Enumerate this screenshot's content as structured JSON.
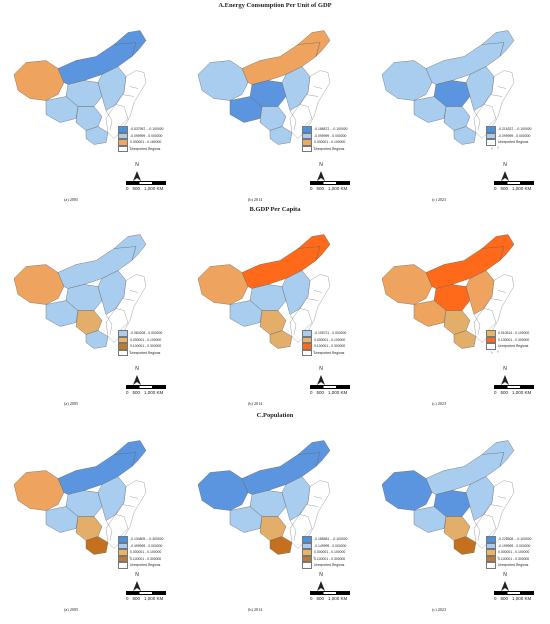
{
  "sections": [
    {
      "title": "A.Energy Consumption Per Unit of GDP",
      "panels": [
        {
          "caption": "(a) 2005",
          "legend": [
            {
              "label": "-0.537957 - -0.100000",
              "color": "#4d8fe0"
            },
            {
              "label": "-0.099999 - 0.000000",
              "color": "#a8cdee"
            },
            {
              "label": "0.000001 - 0.160000",
              "color": "#f0a860"
            },
            {
              "label": "Unreported Regions",
              "color": "#ffffff"
            }
          ],
          "fills": [
            "orange",
            "blue",
            "blue",
            "light",
            "light",
            "light",
            "light",
            "light"
          ]
        },
        {
          "caption": "(b) 2014",
          "legend": [
            {
              "label": "-0.186872 - -0.100000",
              "color": "#4d8fe0"
            },
            {
              "label": "-0.099999 - 0.000000",
              "color": "#a8cdee"
            },
            {
              "label": "0.000001 - 0.100000",
              "color": "#f0a860"
            },
            {
              "label": "Unreported Regions",
              "color": "#ffffff"
            }
          ],
          "fills": [
            "light",
            "orange",
            "orange",
            "blue",
            "blue",
            "light",
            "light",
            "light"
          ]
        },
        {
          "caption": "(c) 2023",
          "legend": [
            {
              "label": "-0.216337 - -0.100000",
              "color": "#4d8fe0"
            },
            {
              "label": "-0.099999 - 0.000000",
              "color": "#a8cdee"
            },
            {
              "label": "Unreported Regions",
              "color": "#ffffff"
            }
          ],
          "fills": [
            "light",
            "light",
            "light",
            "blue",
            "light",
            "light",
            "light",
            "light"
          ]
        }
      ]
    },
    {
      "title": "B.GDP Per Capita",
      "panels": [
        {
          "caption": "(a) 2005",
          "legend": [
            {
              "label": "-0.084208 - 0.000000",
              "color": "#a8cdee"
            },
            {
              "label": "0.000001 - 0.100000",
              "color": "#e8b468"
            },
            {
              "label": "0.100001 - 0.300000",
              "color": "#c07a2a"
            },
            {
              "label": "Unreported Regions",
              "color": "#ffffff"
            }
          ],
          "fills": [
            "orange",
            "light",
            "light",
            "light",
            "light",
            "tan",
            "light",
            "light"
          ]
        },
        {
          "caption": "(b) 2014",
          "legend": [
            {
              "label": "-0.105721 - 0.000000",
              "color": "#a8cdee"
            },
            {
              "label": "0.000001 - 0.100000",
              "color": "#e8b468"
            },
            {
              "label": "0.100001 - 0.300000",
              "color": "#ff6a1a"
            },
            {
              "label": "Unreported Regions",
              "color": "#ffffff"
            }
          ],
          "fills": [
            "orange",
            "red",
            "red",
            "light",
            "light",
            "tan",
            "tan",
            "light"
          ]
        },
        {
          "caption": "(c) 2023",
          "legend": [
            {
              "label": "0.010514 - 0.100000",
              "color": "#e8b468"
            },
            {
              "label": "0.100001 - 0.300000",
              "color": "#ff6a1a"
            },
            {
              "label": "Unreported Regions",
              "color": "#ffffff"
            }
          ],
          "fills": [
            "orange",
            "red",
            "red",
            "red",
            "orange",
            "tan",
            "tan",
            "orange"
          ]
        }
      ]
    },
    {
      "title": "C.Population",
      "panels": [
        {
          "caption": "(a) 2005",
          "legend": [
            {
              "label": "-0.134805 - -0.300000",
              "color": "#4d8fe0"
            },
            {
              "label": "-0.499999 - 0.000000",
              "color": "#a8cdee"
            },
            {
              "label": "0.000001 - 0.100000",
              "color": "#e8b468"
            },
            {
              "label": "0.100001 - 0.300000",
              "color": "#c07a2a"
            },
            {
              "label": "Unreported Regions",
              "color": "#ffffff"
            }
          ],
          "fills": [
            "orange",
            "blue",
            "blue",
            "light",
            "light",
            "tan",
            "brown",
            "light"
          ]
        },
        {
          "caption": "(b) 2014",
          "legend": [
            {
              "label": "-0.185581 - -0.100000",
              "color": "#4d8fe0"
            },
            {
              "label": "-0.149999 - 0.000000",
              "color": "#a8cdee"
            },
            {
              "label": "0.000001 - 0.100000",
              "color": "#e8b468"
            },
            {
              "label": "0.100001 - 0.300000",
              "color": "#c07a2a"
            },
            {
              "label": "Unreported Regions",
              "color": "#ffffff"
            }
          ],
          "fills": [
            "blue",
            "blue",
            "blue",
            "light",
            "light",
            "tan",
            "brown",
            "light"
          ]
        },
        {
          "caption": "(c) 2023",
          "legend": [
            {
              "label": "-0.225508 - -0.100000",
              "color": "#4d8fe0"
            },
            {
              "label": "-0.199999 - 0.000000",
              "color": "#a8cdee"
            },
            {
              "label": "0.000001 - 0.100000",
              "color": "#e8b468"
            },
            {
              "label": "0.100001 - 0.300000",
              "color": "#c07a2a"
            },
            {
              "label": "Unreported Regions",
              "color": "#ffffff"
            }
          ],
          "fills": [
            "blue",
            "light",
            "light",
            "blue",
            "light",
            "tan",
            "brown",
            "light"
          ]
        }
      ]
    }
  ],
  "north_label": "N",
  "scale_labels": [
    "0",
    "500",
    "1,000 KM"
  ],
  "palette": {
    "blue": "#5b95e0",
    "light": "#a9cdef",
    "orange": "#eea45e",
    "red": "#ff6a1a",
    "tan": "#e2ae6a",
    "brown": "#c4701e",
    "none": "#ffffff"
  }
}
